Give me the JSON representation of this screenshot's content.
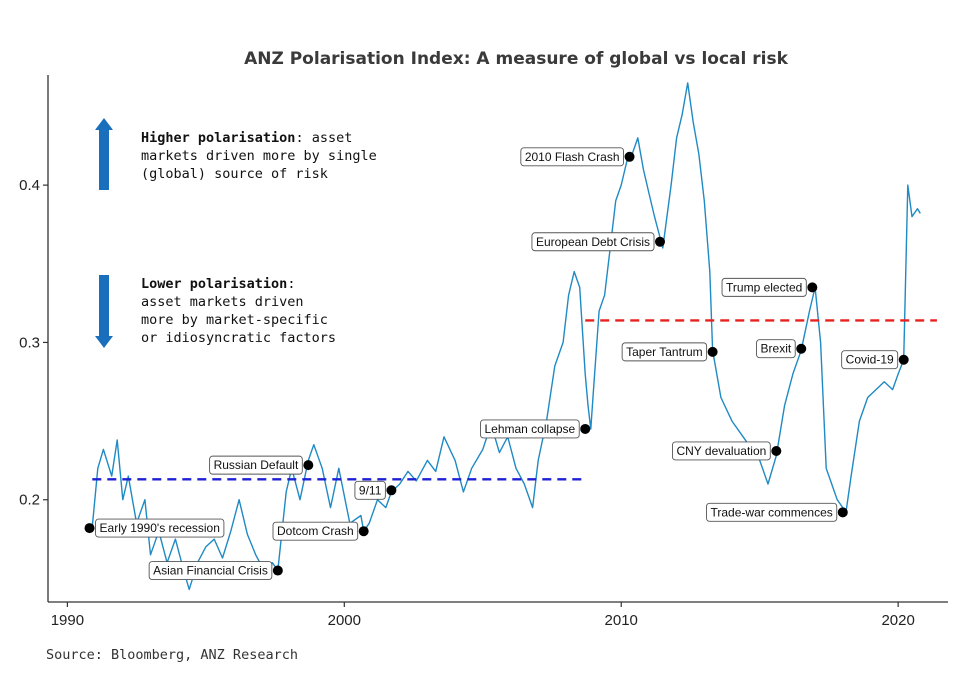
{
  "chart_data": {
    "type": "line",
    "title": "ANZ Polarisation Index: A measure of global vs local risk",
    "source": "Source: Bloomberg, ANZ Research",
    "xlabel": "",
    "ylabel": "",
    "xlim": [
      1989.3,
      2021.8
    ],
    "ylim": [
      0.135,
      0.47
    ],
    "x_ticks": [
      1990,
      2000,
      2010,
      2020
    ],
    "x_tick_labels": [
      "1990",
      "2000",
      "2010",
      "2020"
    ],
    "y_ticks": [
      0.2,
      0.3,
      0.4
    ],
    "y_tick_labels": [
      "0.2",
      "0.3",
      "0.4"
    ],
    "grid": false,
    "colors": {
      "line": "#1f8ac4",
      "avg_before": "#1f1fd6",
      "avg_after": "#e8201e",
      "arrow": "#1a6fbd",
      "marker": "#000000"
    },
    "series": [
      {
        "points": [
          [
            1990.9,
            0.183
          ],
          [
            1991.1,
            0.22
          ],
          [
            1991.3,
            0.232
          ],
          [
            1991.6,
            0.215
          ],
          [
            1991.8,
            0.238
          ],
          [
            1992.0,
            0.2
          ],
          [
            1992.2,
            0.215
          ],
          [
            1992.5,
            0.185
          ],
          [
            1992.8,
            0.2
          ],
          [
            1993.0,
            0.165
          ],
          [
            1993.3,
            0.18
          ],
          [
            1993.6,
            0.16
          ],
          [
            1993.9,
            0.175
          ],
          [
            1994.2,
            0.155
          ],
          [
            1994.4,
            0.143
          ],
          [
            1994.7,
            0.16
          ],
          [
            1995.0,
            0.17
          ],
          [
            1995.3,
            0.175
          ],
          [
            1995.6,
            0.163
          ],
          [
            1995.9,
            0.18
          ],
          [
            1996.2,
            0.2
          ],
          [
            1996.5,
            0.178
          ],
          [
            1996.8,
            0.165
          ],
          [
            1997.1,
            0.155
          ],
          [
            1997.4,
            0.16
          ],
          [
            1997.6,
            0.155
          ],
          [
            1997.9,
            0.205
          ],
          [
            1998.1,
            0.22
          ],
          [
            1998.4,
            0.2
          ],
          [
            1998.7,
            0.225
          ],
          [
            1998.9,
            0.235
          ],
          [
            1999.2,
            0.22
          ],
          [
            1999.5,
            0.195
          ],
          [
            1999.8,
            0.22
          ],
          [
            2000.2,
            0.185
          ],
          [
            2000.6,
            0.19
          ],
          [
            2000.7,
            0.18
          ],
          [
            2000.9,
            0.185
          ],
          [
            2001.2,
            0.2
          ],
          [
            2001.5,
            0.195
          ],
          [
            2001.7,
            0.205
          ],
          [
            2002.0,
            0.21
          ],
          [
            2002.3,
            0.218
          ],
          [
            2002.6,
            0.212
          ],
          [
            2003.0,
            0.225
          ],
          [
            2003.3,
            0.218
          ],
          [
            2003.6,
            0.24
          ],
          [
            2004.0,
            0.225
          ],
          [
            2004.3,
            0.205
          ],
          [
            2004.6,
            0.22
          ],
          [
            2005.0,
            0.232
          ],
          [
            2005.3,
            0.248
          ],
          [
            2005.6,
            0.23
          ],
          [
            2005.9,
            0.24
          ],
          [
            2006.2,
            0.22
          ],
          [
            2006.5,
            0.21
          ],
          [
            2006.8,
            0.195
          ],
          [
            2007.0,
            0.225
          ],
          [
            2007.3,
            0.25
          ],
          [
            2007.6,
            0.285
          ],
          [
            2007.9,
            0.3
          ],
          [
            2008.1,
            0.33
          ],
          [
            2008.3,
            0.345
          ],
          [
            2008.5,
            0.335
          ],
          [
            2008.7,
            0.28
          ],
          [
            2008.8,
            0.26
          ],
          [
            2008.9,
            0.245
          ],
          [
            2009.0,
            0.27
          ],
          [
            2009.2,
            0.32
          ],
          [
            2009.4,
            0.33
          ],
          [
            2009.6,
            0.36
          ],
          [
            2009.8,
            0.39
          ],
          [
            2010.0,
            0.4
          ],
          [
            2010.2,
            0.415
          ],
          [
            2010.4,
            0.42
          ],
          [
            2010.6,
            0.43
          ],
          [
            2010.8,
            0.41
          ],
          [
            2011.0,
            0.395
          ],
          [
            2011.2,
            0.38
          ],
          [
            2011.5,
            0.36
          ],
          [
            2011.8,
            0.4
          ],
          [
            2012.0,
            0.43
          ],
          [
            2012.2,
            0.445
          ],
          [
            2012.4,
            0.465
          ],
          [
            2012.6,
            0.44
          ],
          [
            2012.8,
            0.42
          ],
          [
            2013.0,
            0.39
          ],
          [
            2013.2,
            0.345
          ],
          [
            2013.3,
            0.295
          ],
          [
            2013.6,
            0.265
          ],
          [
            2014.0,
            0.25
          ],
          [
            2014.4,
            0.24
          ],
          [
            2014.8,
            0.23
          ],
          [
            2015.0,
            0.225
          ],
          [
            2015.3,
            0.21
          ],
          [
            2015.6,
            0.228
          ],
          [
            2015.9,
            0.26
          ],
          [
            2016.2,
            0.28
          ],
          [
            2016.5,
            0.295
          ],
          [
            2016.8,
            0.32
          ],
          [
            2017.0,
            0.335
          ],
          [
            2017.2,
            0.3
          ],
          [
            2017.4,
            0.22
          ],
          [
            2017.6,
            0.21
          ],
          [
            2017.8,
            0.2
          ],
          [
            2018.0,
            0.195
          ],
          [
            2018.1,
            0.19
          ],
          [
            2018.3,
            0.215
          ],
          [
            2018.6,
            0.25
          ],
          [
            2018.9,
            0.265
          ],
          [
            2019.2,
            0.27
          ],
          [
            2019.5,
            0.275
          ],
          [
            2019.8,
            0.27
          ],
          [
            2020.0,
            0.28
          ],
          [
            2020.2,
            0.289
          ],
          [
            2020.35,
            0.4
          ],
          [
            2020.5,
            0.38
          ],
          [
            2020.7,
            0.385
          ],
          [
            2020.8,
            0.382
          ]
        ]
      }
    ],
    "reference_lines": [
      {
        "style": "dashed",
        "color": "#1f1fd6",
        "y": 0.213,
        "x_start": 1990.9,
        "x_end": 2008.7
      },
      {
        "style": "dashed",
        "color": "#e8201e",
        "y": 0.314,
        "x_start": 2008.7,
        "x_end": 2021.4
      }
    ],
    "annotations": [
      {
        "label": "Early 1990's recession",
        "x": 1990.8,
        "y": 0.182
      },
      {
        "label": "Asian Financial Crisis",
        "x": 1997.6,
        "y": 0.155
      },
      {
        "label": "Russian Default",
        "x": 1998.7,
        "y": 0.222
      },
      {
        "label": "Dotcom Crash",
        "x": 2000.7,
        "y": 0.18
      },
      {
        "label": "9/11",
        "x": 2001.7,
        "y": 0.206
      },
      {
        "label": "Lehman collapse",
        "x": 2008.7,
        "y": 0.245
      },
      {
        "label": "2010 Flash Crash",
        "x": 2010.3,
        "y": 0.418
      },
      {
        "label": "European Debt Crisis",
        "x": 2011.4,
        "y": 0.364
      },
      {
        "label": "Taper Tantrum",
        "x": 2013.3,
        "y": 0.294
      },
      {
        "label": "CNY devaluation",
        "x": 2015.6,
        "y": 0.231
      },
      {
        "label": "Trump elected",
        "x": 2016.9,
        "y": 0.335
      },
      {
        "label": "Brexit",
        "x": 2016.5,
        "y": 0.296
      },
      {
        "label": "Covid-19",
        "x": 2020.2,
        "y": 0.289
      },
      {
        "label": "Trade-war commences",
        "x": 2018.0,
        "y": 0.192
      }
    ],
    "legend_notes": [
      {
        "direction": "up",
        "bold": "Higher polarisation",
        "lines": [
          ": asset",
          "markets driven more by single",
          "(global) source of risk"
        ]
      },
      {
        "direction": "down",
        "bold": "Lower polarisation",
        "lines": [
          ":",
          "asset markets driven",
          "more by market-specific",
          "or idiosyncratic factors"
        ]
      }
    ]
  }
}
